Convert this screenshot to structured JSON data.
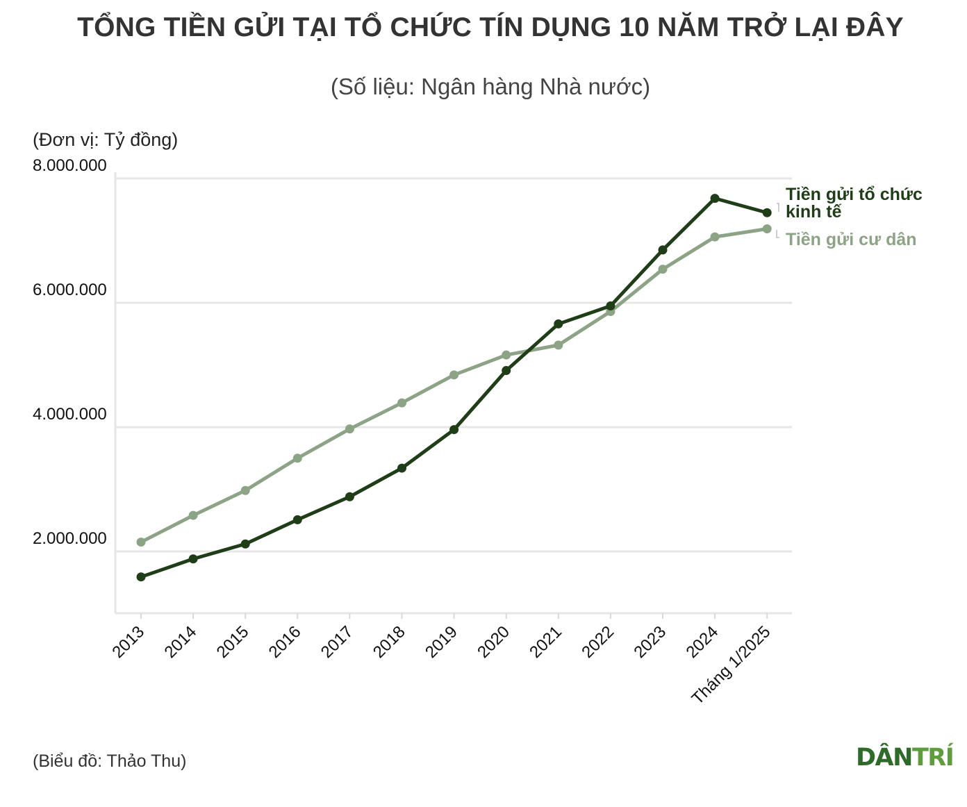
{
  "title": "TỔNG TIỀN GỬI TẠI TỔ CHỨC TÍN DỤNG 10 NĂM TRỞ LẠI ĐÂY",
  "subtitle": "(Số liệu: Ngân hàng Nhà nước)",
  "unit_label": "(Đơn vị: Tỷ đồng)",
  "credit": "(Biểu đồ: Thảo Thu)",
  "logo_text": "DÂN TRÍ",
  "chart_data": {
    "type": "line",
    "categories": [
      "2013",
      "2014",
      "2015",
      "2016",
      "2017",
      "2018",
      "2019",
      "2020",
      "2021",
      "2022",
      "2023",
      "2024",
      "Tháng 1/2025"
    ],
    "ylim": [
      1000000,
      8000000
    ],
    "yticks": [
      2000000,
      4000000,
      6000000,
      8000000
    ],
    "ytick_labels": [
      "2.000.000",
      "4.000.000",
      "6.000.000",
      "8.000.000"
    ],
    "grid": true,
    "series": [
      {
        "name": "Tiền gửi tổ chức kinh tế",
        "label_lines": [
          "Tiền gửi tổ chức",
          "kinh tế"
        ],
        "color": "#1f3d17",
        "values": [
          1590000,
          1880000,
          2120000,
          2510000,
          2880000,
          3340000,
          3960000,
          4910000,
          5660000,
          5950000,
          6850000,
          7680000,
          7450000
        ]
      },
      {
        "name": "Tiền gửi cư dân",
        "label_lines": [
          "Tiền gửi cư dân"
        ],
        "color": "#8ca385",
        "values": [
          2150000,
          2580000,
          2980000,
          3500000,
          3970000,
          4390000,
          4840000,
          5160000,
          5320000,
          5860000,
          6540000,
          7060000,
          7190000
        ]
      }
    ]
  }
}
